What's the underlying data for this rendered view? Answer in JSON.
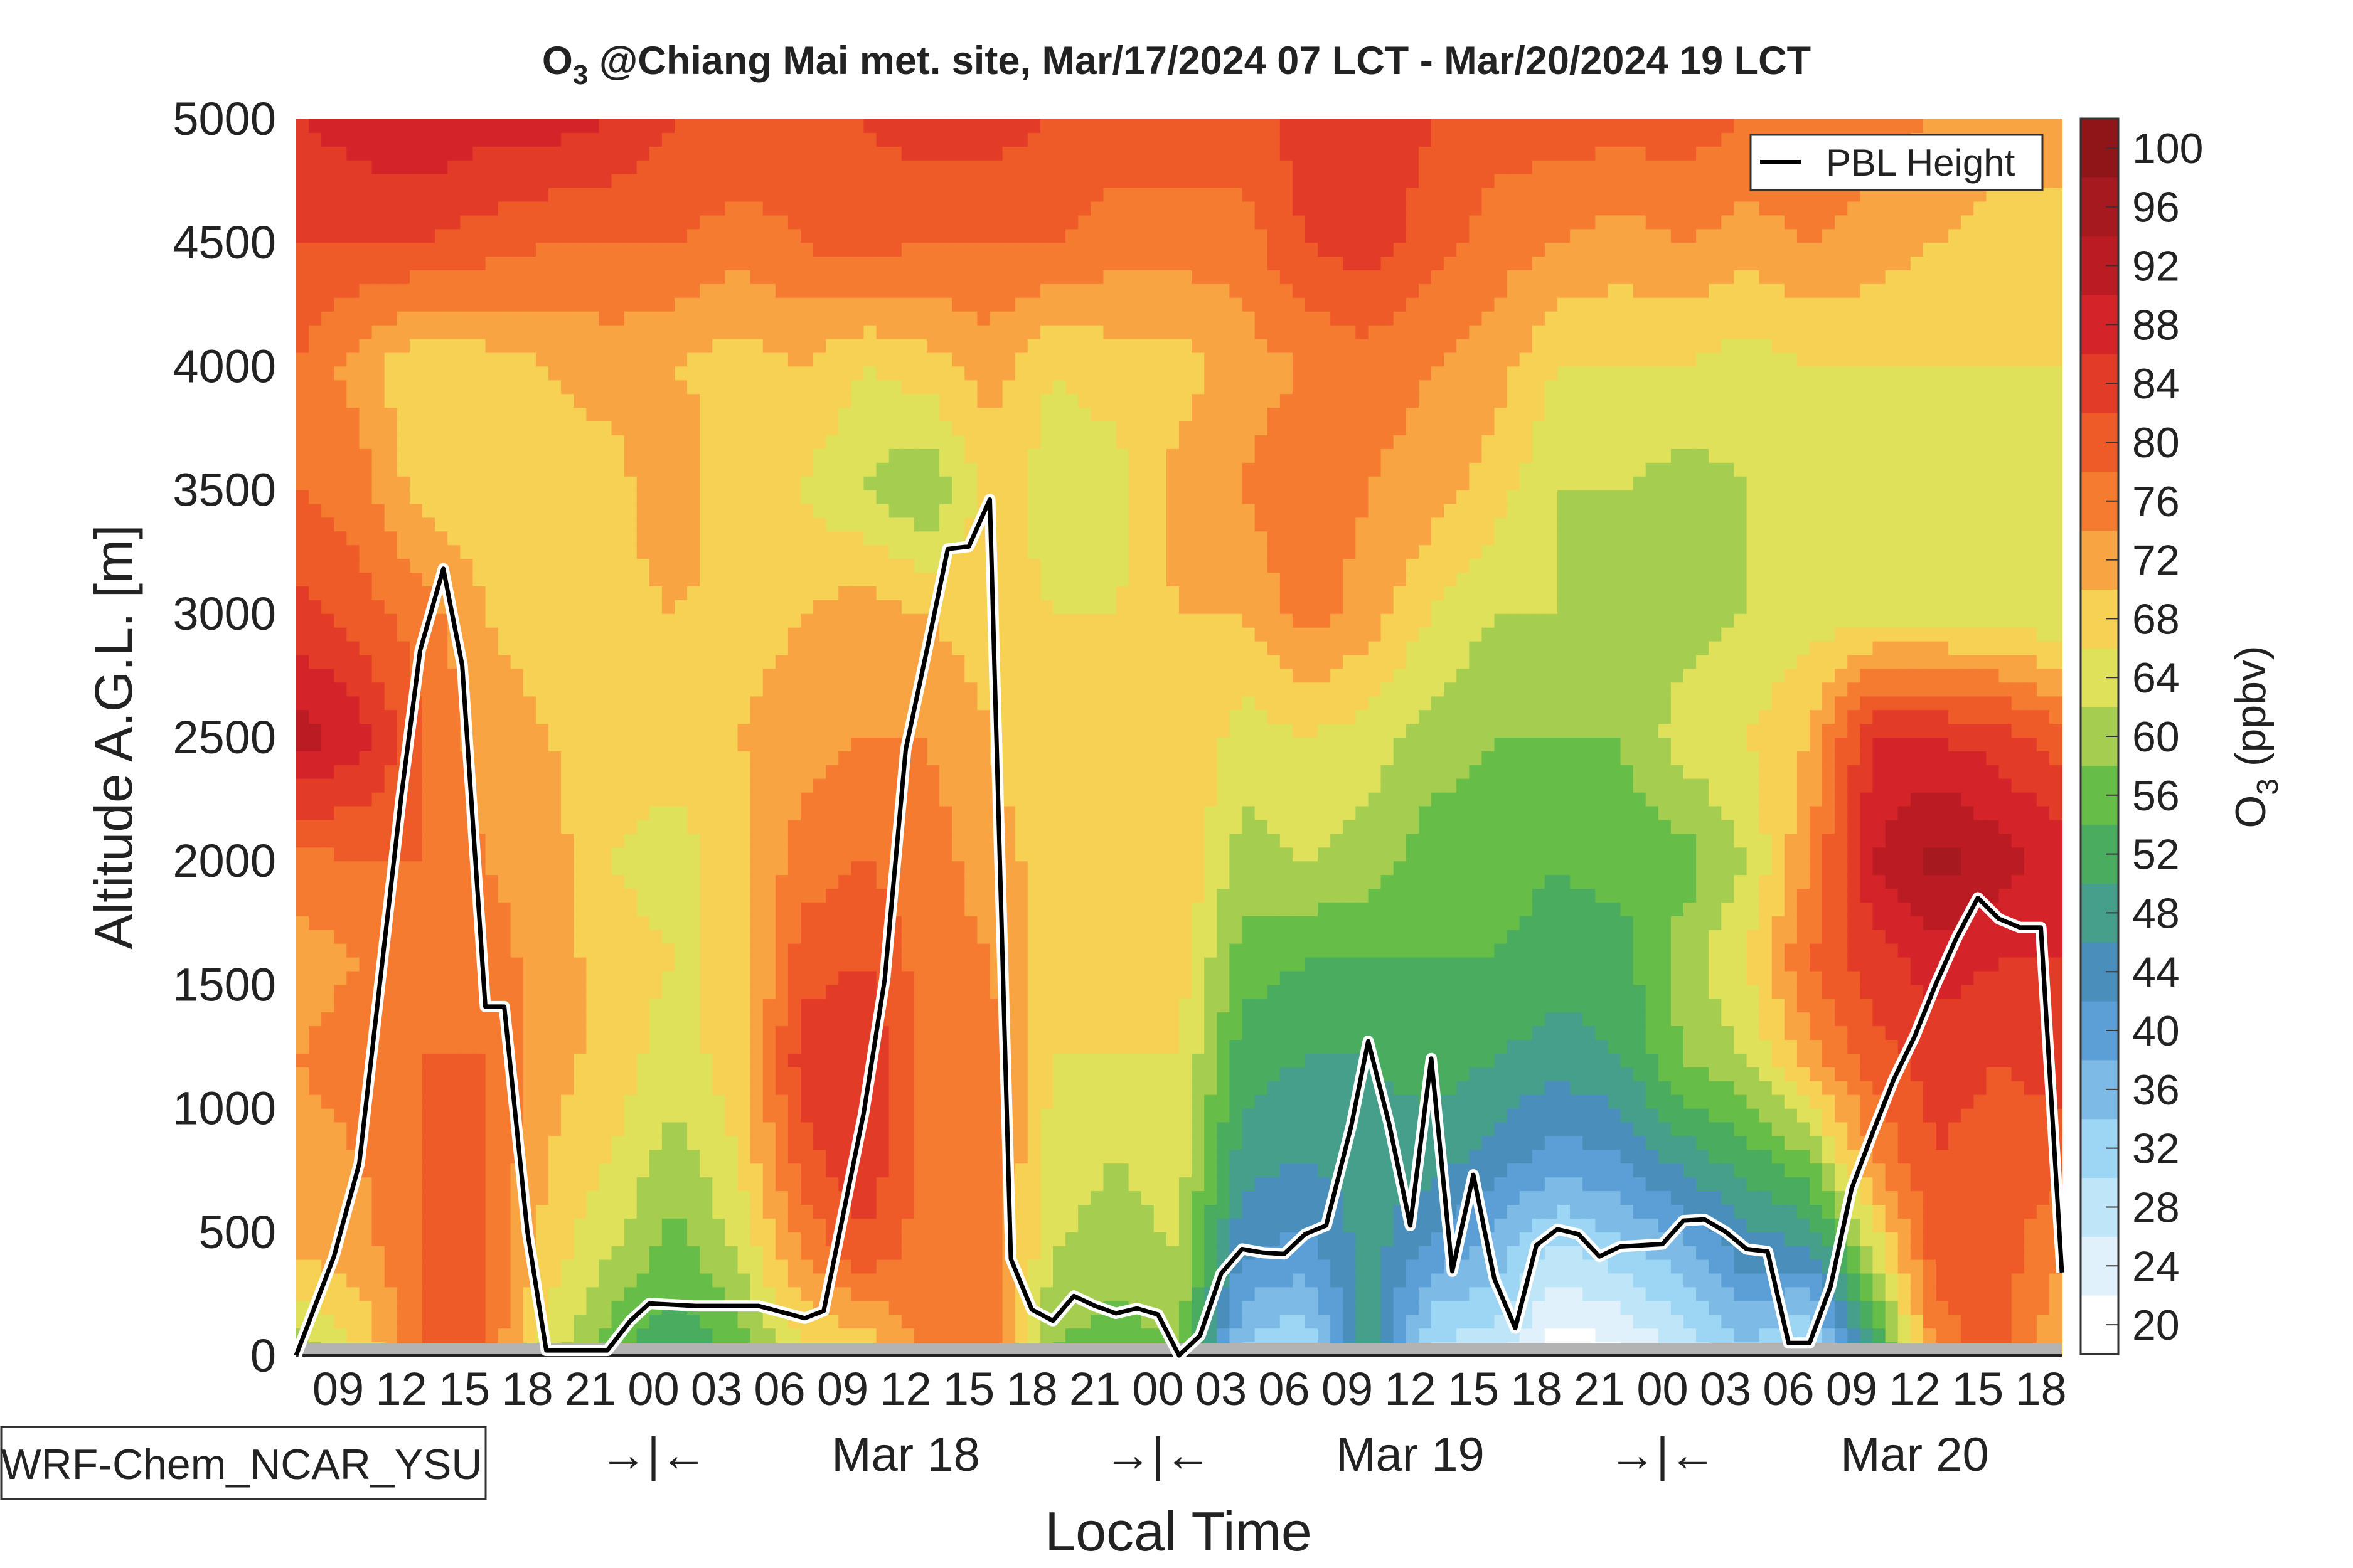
{
  "chart_data": {
    "type": "heatmap",
    "title_main": "O",
    "title_sub": "3",
    "title_rest": " @Chiang Mai met. site, Mar/17/2024 07 LCT - Mar/20/2024 19 LCT",
    "ylabel": "Altitude A.G.L. [m]",
    "xlabel": "Local Time",
    "ylim": [
      0,
      5000
    ],
    "yticks": [
      0,
      500,
      1000,
      1500,
      2000,
      2500,
      3000,
      3500,
      4000,
      4500,
      5000
    ],
    "xlim_hours": [
      0,
      84
    ],
    "xtick_hours": [
      2,
      5,
      8,
      11,
      14,
      17,
      20,
      23,
      26,
      29,
      32,
      35,
      38,
      41,
      44,
      47,
      50,
      53,
      56,
      59,
      62,
      65,
      68,
      71,
      74,
      77,
      80,
      83
    ],
    "xtick_labels": [
      "09",
      "12",
      "15",
      "18",
      "21",
      "00",
      "03",
      "06",
      "09",
      "12",
      "15",
      "18",
      "21",
      "00",
      "03",
      "06",
      "09",
      "12",
      "15",
      "18",
      "21",
      "00",
      "03",
      "06",
      "09",
      "12",
      "15",
      "18"
    ],
    "day_markers": [
      {
        "hour": 17,
        "label": "→|←"
      },
      {
        "hour": 29,
        "label": "Mar 18"
      },
      {
        "hour": 41,
        "label": "→|←"
      },
      {
        "hour": 53,
        "label": "Mar 19"
      },
      {
        "hour": 65,
        "label": "→|←"
      },
      {
        "hour": 77,
        "label": "Mar 20"
      }
    ],
    "model_label": "WRF-Chem_NCAR_YSU",
    "colorbar": {
      "label_main": "O",
      "label_sub": "3",
      "label_rest": " (ppbv)",
      "levels": [
        20,
        24,
        28,
        32,
        36,
        40,
        44,
        48,
        52,
        56,
        60,
        64,
        68,
        72,
        76,
        80,
        84,
        88,
        92,
        96,
        100
      ],
      "colors": [
        "#ffffff",
        "#e0f1fb",
        "#bfe5f8",
        "#9dd6f4",
        "#7dbae6",
        "#5c9fd6",
        "#4a8fbc",
        "#459f8b",
        "#49ac5e",
        "#66bd47",
        "#a5cd50",
        "#dfe15a",
        "#f7d154",
        "#f8a443",
        "#f47b30",
        "#ee5a28",
        "#e23b27",
        "#d42329",
        "#bb1b23",
        "#a5191f",
        "#8f1519"
      ]
    },
    "o3_grid": {
      "time_hours": [
        0,
        3,
        6,
        9,
        12,
        15,
        18,
        21,
        24,
        27,
        30,
        33,
        36,
        39,
        42,
        45,
        48,
        51,
        54,
        57,
        60,
        63,
        66,
        69,
        72,
        75,
        78,
        81,
        84
      ],
      "altitudes_m": [
        50,
        400,
        800,
        1200,
        1600,
        2000,
        2500,
        3000,
        3500,
        4000,
        4500,
        5000
      ],
      "values_ppbv": [
        [
          60,
          70,
          72,
          74,
          72,
          76,
          92,
          84,
          78,
          78,
          82,
          86
        ],
        [
          66,
          72,
          74,
          76,
          74,
          78,
          88,
          80,
          76,
          72,
          82,
          88
        ],
        [
          78,
          78,
          78,
          78,
          78,
          78,
          78,
          76,
          68,
          66,
          82,
          90
        ],
        [
          78,
          78,
          78,
          78,
          76,
          74,
          72,
          70,
          68,
          68,
          80,
          88
        ],
        [
          64,
          68,
          70,
          72,
          72,
          72,
          70,
          68,
          68,
          70,
          78,
          88
        ],
        [
          56,
          62,
          66,
          68,
          68,
          66,
          68,
          68,
          68,
          72,
          78,
          86
        ],
        [
          50,
          56,
          60,
          64,
          66,
          64,
          68,
          70,
          74,
          70,
          78,
          82
        ],
        [
          56,
          62,
          66,
          68,
          66,
          68,
          70,
          68,
          66,
          68,
          76,
          82
        ],
        [
          66,
          74,
          80,
          84,
          80,
          76,
          72,
          70,
          66,
          70,
          78,
          80
        ],
        [
          68,
          80,
          86,
          86,
          82,
          78,
          74,
          72,
          62,
          66,
          80,
          82
        ],
        [
          76,
          76,
          76,
          76,
          76,
          76,
          74,
          70,
          58,
          68,
          78,
          84
        ],
        [
          76,
          76,
          76,
          76,
          74,
          72,
          70,
          68,
          68,
          72,
          78,
          84
        ],
        [
          58,
          62,
          64,
          66,
          68,
          68,
          66,
          66,
          64,
          66,
          78,
          82
        ],
        [
          56,
          60,
          62,
          66,
          68,
          70,
          68,
          66,
          64,
          68,
          76,
          80
        ],
        [
          58,
          62,
          64,
          66,
          68,
          70,
          70,
          70,
          72,
          68,
          76,
          80
        ],
        [
          34,
          42,
          48,
          52,
          56,
          60,
          64,
          70,
          74,
          72,
          76,
          80
        ],
        [
          30,
          40,
          46,
          50,
          54,
          62,
          66,
          76,
          78,
          74,
          82,
          84
        ],
        [
          48,
          48,
          48,
          50,
          54,
          60,
          64,
          72,
          74,
          76,
          84,
          86
        ],
        [
          30,
          40,
          48,
          52,
          54,
          56,
          60,
          66,
          72,
          74,
          80,
          82
        ],
        [
          28,
          36,
          44,
          50,
          54,
          56,
          58,
          62,
          68,
          72,
          76,
          80
        ],
        [
          20,
          28,
          40,
          48,
          52,
          54,
          58,
          62,
          62,
          66,
          74,
          80
        ],
        [
          22,
          32,
          42,
          50,
          52,
          56,
          58,
          60,
          62,
          66,
          72,
          80
        ],
        [
          28,
          36,
          48,
          58,
          60,
          56,
          64,
          60,
          60,
          66,
          74,
          80
        ],
        [
          34,
          44,
          52,
          62,
          66,
          62,
          66,
          62,
          62,
          64,
          72,
          78
        ],
        [
          28,
          44,
          58,
          72,
          78,
          74,
          70,
          64,
          62,
          66,
          74,
          78
        ],
        [
          50,
          62,
          74,
          80,
          84,
          90,
          86,
          64,
          62,
          66,
          72,
          76
        ],
        [
          76,
          80,
          82,
          84,
          88,
          96,
          86,
          64,
          62,
          66,
          70,
          74
        ],
        [
          80,
          80,
          80,
          82,
          86,
          92,
          84,
          64,
          62,
          66,
          68,
          72
        ],
        [
          70,
          74,
          80,
          84,
          86,
          88,
          80,
          62,
          62,
          66,
          68,
          72
        ]
      ]
    },
    "pbl": {
      "legend_label": "PBL Height",
      "hours": [
        0,
        1.8,
        3,
        5,
        5.9,
        7,
        7.9,
        9,
        9.9,
        11,
        11.9,
        14.8,
        15.9,
        16.8,
        19,
        22,
        24.2,
        25.1,
        27,
        28,
        29,
        30,
        31,
        32,
        33,
        34,
        35,
        36,
        37,
        38,
        39,
        40,
        41,
        42,
        43,
        44,
        45,
        46,
        47,
        48,
        49,
        50.2,
        51,
        52,
        53,
        54,
        55,
        56,
        57,
        58,
        59,
        60,
        61,
        62,
        63,
        64,
        65,
        66,
        67,
        68,
        69,
        70,
        71,
        72,
        73,
        74,
        75,
        76,
        77,
        78,
        79,
        80,
        81,
        82,
        83,
        84
      ],
      "height_m": [
        0,
        400,
        775,
        2260,
        2850,
        3180,
        2790,
        1410,
        1410,
        500,
        20,
        20,
        140,
        210,
        200,
        200,
        150,
        180,
        980,
        1520,
        2450,
        2850,
        3260,
        3270,
        3460,
        390,
        185,
        140,
        240,
        200,
        170,
        190,
        165,
        0,
        80,
        330,
        430,
        415,
        410,
        490,
        525,
        930,
        1270,
        935,
        525,
        1200,
        340,
        730,
        310,
        110,
        445,
        510,
        490,
        400,
        440,
        445,
        450,
        545,
        550,
        500,
        430,
        420,
        50,
        50,
        280,
        675,
        900,
        1115,
        1290,
        1500,
        1690,
        1850,
        1765,
        1730,
        1730,
        335
      ]
    }
  }
}
